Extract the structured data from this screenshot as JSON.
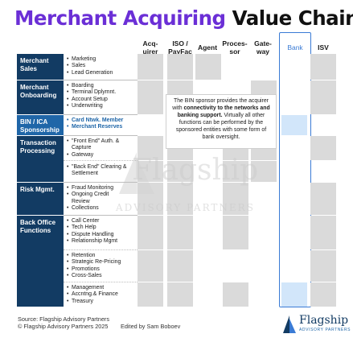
{
  "title": {
    "accent": "Merchant Acquiring",
    "rest": "Value Chain"
  },
  "columns": [
    {
      "id": "acquirer",
      "label": "Acq-\nuirer",
      "color": "#1a1a1a"
    },
    {
      "id": "iso_payfac",
      "label": "ISO /\nPayFac",
      "color": "#1a1a1a"
    },
    {
      "id": "agent",
      "label": "Agent",
      "color": "#1a1a1a"
    },
    {
      "id": "processor",
      "label": "Proces-\nsor",
      "color": "#1a1a1a"
    },
    {
      "id": "gateway",
      "label": "Gate-\nway",
      "color": "#1a1a1a"
    },
    {
      "id": "bank",
      "label": "Bank",
      "color": "#3a7bd5",
      "highlighted": true
    },
    {
      "id": "isv",
      "label": "ISV",
      "color": "#1a1a1a"
    }
  ],
  "rows": [
    {
      "id": "merchant_sales",
      "label": "Merchant Sales",
      "highlighted": false,
      "groups": [
        {
          "items": [
            "Marketing",
            "Sales",
            "Lead Generation"
          ]
        }
      ]
    },
    {
      "id": "merchant_onboarding",
      "label": "Merchant Onboarding",
      "highlighted": false,
      "groups": [
        {
          "items": [
            "Boarding",
            "Terminal Dplymnt.",
            "Account Setup",
            "Underwriting"
          ]
        }
      ]
    },
    {
      "id": "bin_ica",
      "label": "BIN / ICA Sponsorship",
      "highlighted": true,
      "groups": [
        {
          "items": [
            "Card Ntwk. Member",
            "Merchant Reserves"
          ]
        }
      ]
    },
    {
      "id": "transaction_processing",
      "label": "Transaction Processing",
      "highlighted": false,
      "groups": [
        {
          "items": [
            "\"Front End\" Auth. & Capture",
            "Gateway"
          ]
        },
        {
          "items": [
            "\"Back End\" Clearing & Settlement"
          ]
        }
      ]
    },
    {
      "id": "risk_mgmt",
      "label": "Risk Mgmt.",
      "highlighted": false,
      "groups": [
        {
          "items": [
            "Fraud Monitoring",
            "Ongoing Credit Review",
            "Collections"
          ]
        }
      ]
    },
    {
      "id": "back_office",
      "label": "Back Office Functions",
      "highlighted": false,
      "groups": [
        {
          "items": [
            "Call Center",
            "Tech Help",
            "Dispute Handling",
            "Relationship Mgmt"
          ]
        },
        {
          "items": [
            "Retention",
            "Strategic Re-Pricing",
            "Promotions",
            "Cross-Sales"
          ]
        },
        {
          "items": [
            "Management",
            "Accntng.& Finance",
            "Treasury"
          ]
        }
      ]
    }
  ],
  "matrix": {
    "note": "rows ordered: sales, onboarding, bin/ica, front end, back end, risk, back office 1, back office 2, back office 3; columns ordered as columns[]; 1 = filled",
    "fills": [
      [
        1,
        1,
        1,
        0,
        0,
        0,
        1
      ],
      [
        1,
        1,
        0,
        0,
        1,
        0,
        1
      ],
      [
        0,
        0,
        0,
        0,
        0,
        1,
        0
      ],
      [
        1,
        1,
        0,
        1,
        1,
        0,
        1
      ],
      [
        1,
        1,
        0,
        1,
        1,
        0,
        0
      ],
      [
        1,
        1,
        0,
        1,
        0,
        0,
        1
      ],
      [
        1,
        1,
        0,
        1,
        0,
        0,
        1
      ],
      [
        1,
        1,
        0,
        0,
        0,
        0,
        1
      ],
      [
        1,
        1,
        0,
        1,
        0,
        1,
        1
      ]
    ]
  },
  "callout": {
    "pre": "The BIN sponsor provides the acquirer with ",
    "bold": "connectivity to the networks and banking support.",
    "post": " Virtually all other functions can be performed by the sponsored entities with some form of bank oversight."
  },
  "watermark": {
    "main": "Flagship",
    "sub": "ADVISORY PARTNERS"
  },
  "footer": {
    "source": "Source: Flagship Advisory Partners",
    "copyright": "© Flagship Advisory Partners 2025",
    "editor": "Edited by Sam Boboev"
  },
  "logo": {
    "name": "Flagship",
    "sub": "ADVISORY PARTNERS"
  },
  "colors": {
    "accent": "#6b2fd6",
    "navy": "#123b63",
    "blue_highlight": "#1f66a8",
    "bank_outline": "#3a7bd5",
    "cell_gray": "#dadada",
    "cell_blue": "#d2e6fa"
  }
}
